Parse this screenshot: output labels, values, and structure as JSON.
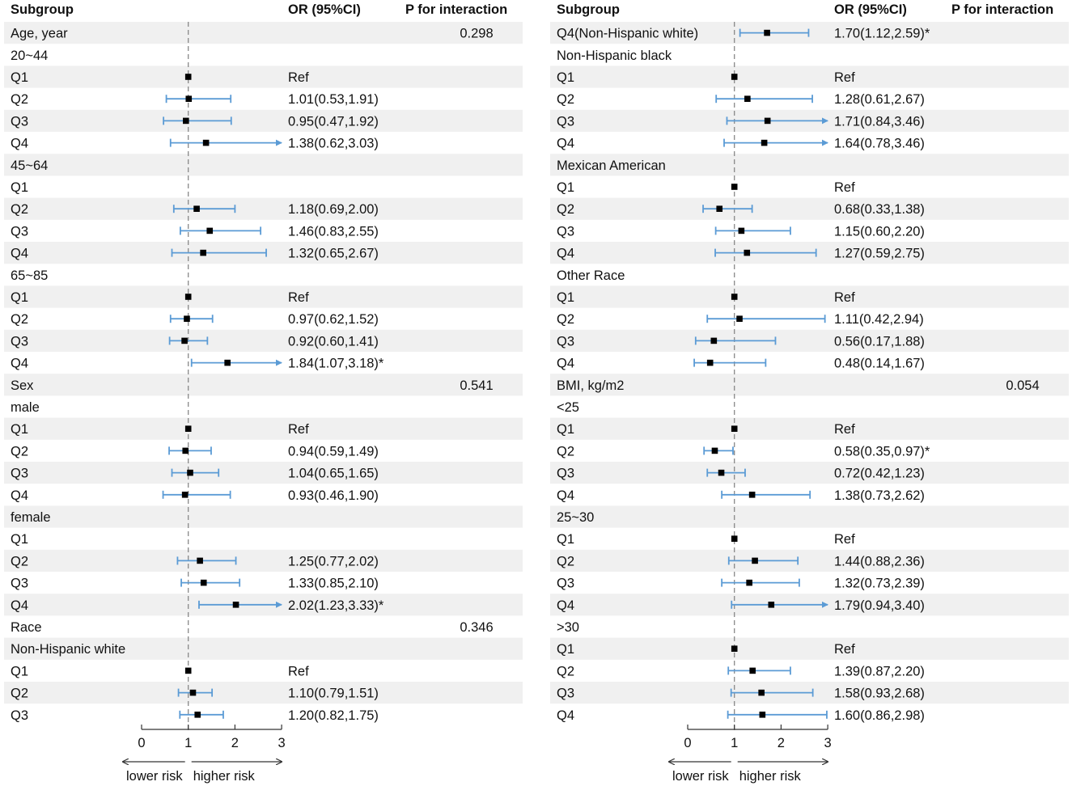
{
  "chart_data": [
    {
      "type": "forest",
      "headers": {
        "subgroup": "Subgroup",
        "or": "OR (95%CI)",
        "p": "P for interaction"
      },
      "x_axis": {
        "ticks": [
          "0",
          "1",
          "2",
          "3"
        ],
        "xlim": [
          0,
          3
        ],
        "reference": 1,
        "lower_label": "lower risk",
        "higher_label": "higher risk"
      },
      "rows": [
        {
          "label": "Age, year",
          "or_text": "",
          "p": "0.298",
          "shaded": true
        },
        {
          "label": "20~44",
          "or_text": "",
          "p": "",
          "shaded": false
        },
        {
          "label": "Q1",
          "or_text": "Ref",
          "p": "",
          "shaded": true,
          "est": 1.0
        },
        {
          "label": "Q2",
          "or_text": "1.01(0.53,1.91)",
          "p": "",
          "shaded": false,
          "est": 1.01,
          "lo": 0.53,
          "hi": 1.91
        },
        {
          "label": "Q3",
          "or_text": "0.95(0.47,1.92)",
          "p": "",
          "shaded": true,
          "est": 0.95,
          "lo": 0.47,
          "hi": 1.92
        },
        {
          "label": "Q4",
          "or_text": "1.38(0.62,3.03)",
          "p": "",
          "shaded": false,
          "est": 1.38,
          "lo": 0.62,
          "hi": 3.03
        },
        {
          "label": "45~64",
          "or_text": "",
          "p": "",
          "shaded": true
        },
        {
          "label": "Q1",
          "or_text": "",
          "p": "",
          "shaded": false
        },
        {
          "label": "Q2",
          "or_text": "1.18(0.69,2.00)",
          "p": "",
          "shaded": true,
          "est": 1.18,
          "lo": 0.69,
          "hi": 2.0
        },
        {
          "label": "Q3",
          "or_text": "1.46(0.83,2.55)",
          "p": "",
          "shaded": false,
          "est": 1.46,
          "lo": 0.83,
          "hi": 2.55
        },
        {
          "label": "Q4",
          "or_text": "1.32(0.65,2.67)",
          "p": "",
          "shaded": true,
          "est": 1.32,
          "lo": 0.65,
          "hi": 2.67
        },
        {
          "label": "65~85",
          "or_text": "",
          "p": "",
          "shaded": false
        },
        {
          "label": "Q1",
          "or_text": "Ref",
          "p": "",
          "shaded": true,
          "est": 1.0
        },
        {
          "label": "Q2",
          "or_text": "0.97(0.62,1.52)",
          "p": "",
          "shaded": false,
          "est": 0.97,
          "lo": 0.62,
          "hi": 1.52
        },
        {
          "label": "Q3",
          "or_text": "0.92(0.60,1.41)",
          "p": "",
          "shaded": true,
          "est": 0.92,
          "lo": 0.6,
          "hi": 1.41
        },
        {
          "label": "Q4",
          "or_text": "1.84(1.07,3.18)*",
          "p": "",
          "shaded": false,
          "est": 1.84,
          "lo": 1.07,
          "hi": 3.18
        },
        {
          "label": "Sex",
          "or_text": "",
          "p": "0.541",
          "shaded": true
        },
        {
          "label": "male",
          "or_text": "",
          "p": "",
          "shaded": false
        },
        {
          "label": "Q1",
          "or_text": "Ref",
          "p": "",
          "shaded": true,
          "est": 1.0
        },
        {
          "label": "Q2",
          "or_text": "0.94(0.59,1.49)",
          "p": "",
          "shaded": false,
          "est": 0.94,
          "lo": 0.59,
          "hi": 1.49
        },
        {
          "label": "Q3",
          "or_text": "1.04(0.65,1.65)",
          "p": "",
          "shaded": true,
          "est": 1.04,
          "lo": 0.65,
          "hi": 1.65
        },
        {
          "label": "Q4",
          "or_text": "0.93(0.46,1.90)",
          "p": "",
          "shaded": false,
          "est": 0.93,
          "lo": 0.46,
          "hi": 1.9
        },
        {
          "label": "female",
          "or_text": "",
          "p": "",
          "shaded": true
        },
        {
          "label": "Q1",
          "or_text": "",
          "p": "",
          "shaded": false
        },
        {
          "label": "Q2",
          "or_text": "1.25(0.77,2.02)",
          "p": "",
          "shaded": true,
          "est": 1.25,
          "lo": 0.77,
          "hi": 2.02
        },
        {
          "label": "Q3",
          "or_text": "1.33(0.85,2.10)",
          "p": "",
          "shaded": false,
          "est": 1.33,
          "lo": 0.85,
          "hi": 2.1
        },
        {
          "label": "Q4",
          "or_text": "2.02(1.23,3.33)*",
          "p": "",
          "shaded": true,
          "est": 2.02,
          "lo": 1.23,
          "hi": 3.33
        },
        {
          "label": "Race",
          "or_text": "",
          "p": "0.346",
          "shaded": false
        },
        {
          "label": "Non-Hispanic white",
          "or_text": "",
          "p": "",
          "shaded": true
        },
        {
          "label": "Q1",
          "or_text": "Ref",
          "p": "",
          "shaded": false,
          "est": 1.0
        },
        {
          "label": "Q2",
          "or_text": "1.10(0.79,1.51)",
          "p": "",
          "shaded": true,
          "est": 1.1,
          "lo": 0.79,
          "hi": 1.51
        },
        {
          "label": "Q3",
          "or_text": "1.20(0.82,1.75)",
          "p": "",
          "shaded": false,
          "est": 1.2,
          "lo": 0.82,
          "hi": 1.75
        }
      ]
    },
    {
      "type": "forest",
      "headers": {
        "subgroup": "Subgroup",
        "or": "OR (95%CI)",
        "p": "P for interaction"
      },
      "x_axis": {
        "ticks": [
          "0",
          "1",
          "2",
          "3"
        ],
        "xlim": [
          0,
          3
        ],
        "reference": 1,
        "lower_label": "lower risk",
        "higher_label": "higher risk"
      },
      "rows": [
        {
          "label": "Q4(Non-Hispanic white)",
          "or_text": "1.70(1.12,2.59)*",
          "p": "",
          "shaded": true,
          "est": 1.7,
          "lo": 1.12,
          "hi": 2.59
        },
        {
          "label": "Non-Hispanic black",
          "or_text": "",
          "p": "",
          "shaded": false
        },
        {
          "label": "Q1",
          "or_text": "Ref",
          "p": "",
          "shaded": true,
          "est": 1.0
        },
        {
          "label": "Q2",
          "or_text": "1.28(0.61,2.67)",
          "p": "",
          "shaded": false,
          "est": 1.28,
          "lo": 0.61,
          "hi": 2.67
        },
        {
          "label": "Q3",
          "or_text": "1.71(0.84,3.46)",
          "p": "",
          "shaded": true,
          "est": 1.71,
          "lo": 0.84,
          "hi": 3.46
        },
        {
          "label": "Q4",
          "or_text": "1.64(0.78,3.46)",
          "p": "",
          "shaded": false,
          "est": 1.64,
          "lo": 0.78,
          "hi": 3.46
        },
        {
          "label": "Mexican American",
          "or_text": "",
          "p": "",
          "shaded": true
        },
        {
          "label": "Q1",
          "or_text": "Ref",
          "p": "",
          "shaded": false,
          "est": 1.0
        },
        {
          "label": "Q2",
          "or_text": "0.68(0.33,1.38)",
          "p": "",
          "shaded": true,
          "est": 0.68,
          "lo": 0.33,
          "hi": 1.38
        },
        {
          "label": "Q3",
          "or_text": "1.15(0.60,2.20)",
          "p": "",
          "shaded": false,
          "est": 1.15,
          "lo": 0.6,
          "hi": 2.2
        },
        {
          "label": "Q4",
          "or_text": "1.27(0.59,2.75)",
          "p": "",
          "shaded": true,
          "est": 1.27,
          "lo": 0.59,
          "hi": 2.75
        },
        {
          "label": "Other Race",
          "or_text": "",
          "p": "",
          "shaded": false
        },
        {
          "label": "Q1",
          "or_text": "Ref",
          "p": "",
          "shaded": true,
          "est": 1.0
        },
        {
          "label": "Q2",
          "or_text": "1.11(0.42,2.94)",
          "p": "",
          "shaded": false,
          "est": 1.11,
          "lo": 0.42,
          "hi": 2.94
        },
        {
          "label": "Q3",
          "or_text": "0.56(0.17,1.88)",
          "p": "",
          "shaded": true,
          "est": 0.56,
          "lo": 0.17,
          "hi": 1.88
        },
        {
          "label": "Q4",
          "or_text": "0.48(0.14,1.67)",
          "p": "",
          "shaded": false,
          "est": 0.48,
          "lo": 0.14,
          "hi": 1.67
        },
        {
          "label": "BMI, kg/m2",
          "or_text": "",
          "p": "0.054",
          "shaded": true
        },
        {
          "label": "<25",
          "or_text": "",
          "p": "",
          "shaded": false
        },
        {
          "label": "Q1",
          "or_text": "Ref",
          "p": "",
          "shaded": true,
          "est": 1.0
        },
        {
          "label": "Q2",
          "or_text": "0.58(0.35,0.97)*",
          "p": "",
          "shaded": false,
          "est": 0.58,
          "lo": 0.35,
          "hi": 0.97
        },
        {
          "label": "Q3",
          "or_text": "0.72(0.42,1.23)",
          "p": "",
          "shaded": true,
          "est": 0.72,
          "lo": 0.42,
          "hi": 1.23
        },
        {
          "label": "Q4",
          "or_text": "1.38(0.73,2.62)",
          "p": "",
          "shaded": false,
          "est": 1.38,
          "lo": 0.73,
          "hi": 2.62
        },
        {
          "label": "25~30",
          "or_text": "",
          "p": "",
          "shaded": true
        },
        {
          "label": "Q1",
          "or_text": "Ref",
          "p": "",
          "shaded": false,
          "est": 1.0
        },
        {
          "label": "Q2",
          "or_text": "1.44(0.88,2.36)",
          "p": "",
          "shaded": true,
          "est": 1.44,
          "lo": 0.88,
          "hi": 2.36
        },
        {
          "label": "Q3",
          "or_text": "1.32(0.73,2.39)",
          "p": "",
          "shaded": false,
          "est": 1.32,
          "lo": 0.73,
          "hi": 2.39
        },
        {
          "label": "Q4",
          "or_text": "1.79(0.94,3.40)",
          "p": "",
          "shaded": true,
          "est": 1.79,
          "lo": 0.94,
          "hi": 3.4
        },
        {
          "label": ">30",
          "or_text": "",
          "p": "",
          "shaded": false
        },
        {
          "label": "Q1",
          "or_text": "Ref",
          "p": "",
          "shaded": true,
          "est": 1.0
        },
        {
          "label": "Q2",
          "or_text": "1.39(0.87,2.20)",
          "p": "",
          "shaded": false,
          "est": 1.39,
          "lo": 0.87,
          "hi": 2.2
        },
        {
          "label": "Q3",
          "or_text": "1.58(0.93,2.68)",
          "p": "",
          "shaded": true,
          "est": 1.58,
          "lo": 0.93,
          "hi": 2.68
        },
        {
          "label": "Q4",
          "or_text": "1.60(0.86,2.98)",
          "p": "",
          "shaded": false,
          "est": 1.6,
          "lo": 0.86,
          "hi": 2.98
        }
      ]
    }
  ],
  "colors": {
    "ci_line": "#5b9bd5",
    "shade": "#f0f0f0",
    "marker": "#000000",
    "ref_line": "#888888",
    "axis": "#333333"
  }
}
